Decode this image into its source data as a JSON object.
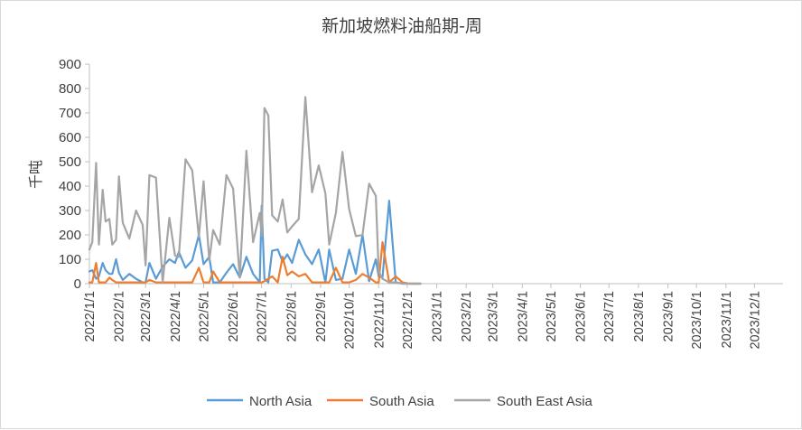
{
  "chart_data": {
    "type": "line",
    "title": "新加坡燃料油船期-周",
    "ylabel": "千吨",
    "xlabel": "",
    "ylim": [
      0,
      900
    ],
    "yticks": [
      0,
      100,
      200,
      300,
      400,
      500,
      600,
      700,
      800,
      900
    ],
    "x_ticks": [
      "2022/1/1",
      "2022/2/1",
      "2022/3/1",
      "2022/4/1",
      "2022/5/1",
      "2022/6/1",
      "2022/7/1",
      "2022/8/1",
      "2022/9/1",
      "2022/10/1",
      "2022/11/1",
      "2022/12/1",
      "2023/1/1",
      "2023/2/1",
      "2023/3/1",
      "2023/4/1",
      "2023/5/1",
      "2023/6/1",
      "2023/7/1",
      "2023/8/1",
      "2023/9/1",
      "2023/10/1",
      "2023/11/1",
      "2023/12/1"
    ],
    "x_start": "2022-01-01",
    "x_end": "2023-12-31",
    "grid": false,
    "legend_position": "bottom",
    "series": [
      {
        "name": "North Asia",
        "color": "#5b9bd5",
        "points": [
          [
            "2022-01-01",
            50
          ],
          [
            "2022-01-04",
            55
          ],
          [
            "2022-01-08",
            20
          ],
          [
            "2022-01-11",
            30
          ],
          [
            "2022-01-15",
            85
          ],
          [
            "2022-01-18",
            55
          ],
          [
            "2022-01-22",
            40
          ],
          [
            "2022-01-25",
            40
          ],
          [
            "2022-01-29",
            100
          ],
          [
            "2022-02-01",
            45
          ],
          [
            "2022-02-05",
            15
          ],
          [
            "2022-02-12",
            40
          ],
          [
            "2022-02-19",
            20
          ],
          [
            "2022-02-26",
            5
          ],
          [
            "2022-03-01",
            5
          ],
          [
            "2022-03-05",
            85
          ],
          [
            "2022-03-12",
            20
          ],
          [
            "2022-03-19",
            70
          ],
          [
            "2022-03-26",
            100
          ],
          [
            "2022-04-01",
            85
          ],
          [
            "2022-04-05",
            130
          ],
          [
            "2022-04-12",
            65
          ],
          [
            "2022-04-19",
            95
          ],
          [
            "2022-04-26",
            200
          ],
          [
            "2022-05-01",
            80
          ],
          [
            "2022-05-07",
            110
          ],
          [
            "2022-05-11",
            5
          ],
          [
            "2022-05-18",
            5
          ],
          [
            "2022-05-25",
            45
          ],
          [
            "2022-06-01",
            80
          ],
          [
            "2022-06-08",
            25
          ],
          [
            "2022-06-15",
            110
          ],
          [
            "2022-06-22",
            40
          ],
          [
            "2022-06-29",
            5
          ],
          [
            "2022-07-01",
            320
          ],
          [
            "2022-07-04",
            20
          ],
          [
            "2022-07-08",
            5
          ],
          [
            "2022-07-12",
            135
          ],
          [
            "2022-07-18",
            140
          ],
          [
            "2022-07-23",
            90
          ],
          [
            "2022-07-28",
            120
          ],
          [
            "2022-08-02",
            85
          ],
          [
            "2022-08-09",
            180
          ],
          [
            "2022-08-16",
            120
          ],
          [
            "2022-08-23",
            80
          ],
          [
            "2022-08-30",
            140
          ],
          [
            "2022-09-06",
            5
          ],
          [
            "2022-09-10",
            140
          ],
          [
            "2022-09-17",
            15
          ],
          [
            "2022-09-24",
            20
          ],
          [
            "2022-10-01",
            140
          ],
          [
            "2022-10-08",
            40
          ],
          [
            "2022-10-15",
            200
          ],
          [
            "2022-10-22",
            10
          ],
          [
            "2022-10-29",
            100
          ],
          [
            "2022-11-01",
            30
          ],
          [
            "2022-11-05",
            25
          ],
          [
            "2022-11-12",
            340
          ],
          [
            "2022-11-19",
            5
          ],
          [
            "2022-11-26",
            0
          ],
          [
            "2022-12-03",
            0
          ],
          [
            "2022-12-10",
            0
          ],
          [
            "2022-12-15",
            0
          ]
        ]
      },
      {
        "name": "South Asia",
        "color": "#ed7d31",
        "points": [
          [
            "2022-01-01",
            5
          ],
          [
            "2022-01-04",
            5
          ],
          [
            "2022-01-08",
            85
          ],
          [
            "2022-01-11",
            5
          ],
          [
            "2022-01-15",
            5
          ],
          [
            "2022-01-18",
            5
          ],
          [
            "2022-01-22",
            25
          ],
          [
            "2022-01-25",
            15
          ],
          [
            "2022-01-29",
            5
          ],
          [
            "2022-02-01",
            5
          ],
          [
            "2022-02-05",
            5
          ],
          [
            "2022-02-12",
            5
          ],
          [
            "2022-02-19",
            5
          ],
          [
            "2022-02-26",
            5
          ],
          [
            "2022-03-01",
            5
          ],
          [
            "2022-03-05",
            15
          ],
          [
            "2022-03-12",
            5
          ],
          [
            "2022-03-19",
            5
          ],
          [
            "2022-03-26",
            5
          ],
          [
            "2022-04-01",
            5
          ],
          [
            "2022-04-05",
            5
          ],
          [
            "2022-04-12",
            5
          ],
          [
            "2022-04-19",
            5
          ],
          [
            "2022-04-26",
            65
          ],
          [
            "2022-05-01",
            5
          ],
          [
            "2022-05-07",
            5
          ],
          [
            "2022-05-11",
            50
          ],
          [
            "2022-05-18",
            5
          ],
          [
            "2022-05-25",
            5
          ],
          [
            "2022-06-01",
            5
          ],
          [
            "2022-06-08",
            5
          ],
          [
            "2022-06-15",
            5
          ],
          [
            "2022-06-22",
            5
          ],
          [
            "2022-06-29",
            5
          ],
          [
            "2022-07-01",
            5
          ],
          [
            "2022-07-04",
            10
          ],
          [
            "2022-07-08",
            20
          ],
          [
            "2022-07-12",
            30
          ],
          [
            "2022-07-18",
            5
          ],
          [
            "2022-07-23",
            110
          ],
          [
            "2022-07-28",
            35
          ],
          [
            "2022-08-02",
            50
          ],
          [
            "2022-08-09",
            30
          ],
          [
            "2022-08-16",
            40
          ],
          [
            "2022-08-23",
            5
          ],
          [
            "2022-08-30",
            5
          ],
          [
            "2022-09-06",
            5
          ],
          [
            "2022-09-10",
            5
          ],
          [
            "2022-09-17",
            65
          ],
          [
            "2022-09-24",
            5
          ],
          [
            "2022-10-01",
            5
          ],
          [
            "2022-10-08",
            15
          ],
          [
            "2022-10-15",
            40
          ],
          [
            "2022-10-22",
            25
          ],
          [
            "2022-10-29",
            5
          ],
          [
            "2022-11-01",
            5
          ],
          [
            "2022-11-05",
            170
          ],
          [
            "2022-11-12",
            5
          ],
          [
            "2022-11-19",
            30
          ],
          [
            "2022-11-26",
            5
          ],
          [
            "2022-12-03",
            0
          ],
          [
            "2022-12-10",
            0
          ],
          [
            "2022-12-15",
            0
          ]
        ]
      },
      {
        "name": "South East Asia",
        "color": "#a5a5a5",
        "points": [
          [
            "2022-01-01",
            140
          ],
          [
            "2022-01-04",
            170
          ],
          [
            "2022-01-08",
            495
          ],
          [
            "2022-01-11",
            160
          ],
          [
            "2022-01-15",
            385
          ],
          [
            "2022-01-18",
            255
          ],
          [
            "2022-01-22",
            265
          ],
          [
            "2022-01-25",
            160
          ],
          [
            "2022-01-29",
            180
          ],
          [
            "2022-02-01",
            440
          ],
          [
            "2022-02-05",
            250
          ],
          [
            "2022-02-12",
            185
          ],
          [
            "2022-02-19",
            300
          ],
          [
            "2022-02-26",
            240
          ],
          [
            "2022-03-01",
            75
          ],
          [
            "2022-03-05",
            445
          ],
          [
            "2022-03-12",
            435
          ],
          [
            "2022-03-19",
            5
          ],
          [
            "2022-03-26",
            270
          ],
          [
            "2022-04-01",
            115
          ],
          [
            "2022-04-05",
            110
          ],
          [
            "2022-04-12",
            510
          ],
          [
            "2022-04-19",
            465
          ],
          [
            "2022-04-26",
            190
          ],
          [
            "2022-05-01",
            420
          ],
          [
            "2022-05-07",
            95
          ],
          [
            "2022-05-11",
            220
          ],
          [
            "2022-05-18",
            160
          ],
          [
            "2022-05-25",
            445
          ],
          [
            "2022-06-01",
            390
          ],
          [
            "2022-06-08",
            25
          ],
          [
            "2022-06-15",
            545
          ],
          [
            "2022-06-22",
            170
          ],
          [
            "2022-06-29",
            290
          ],
          [
            "2022-07-01",
            195
          ],
          [
            "2022-07-04",
            720
          ],
          [
            "2022-07-08",
            690
          ],
          [
            "2022-07-12",
            280
          ],
          [
            "2022-07-18",
            255
          ],
          [
            "2022-07-23",
            345
          ],
          [
            "2022-07-28",
            210
          ],
          [
            "2022-08-02",
            235
          ],
          [
            "2022-08-09",
            265
          ],
          [
            "2022-08-16",
            765
          ],
          [
            "2022-08-23",
            375
          ],
          [
            "2022-08-30",
            485
          ],
          [
            "2022-09-06",
            370
          ],
          [
            "2022-09-10",
            160
          ],
          [
            "2022-09-17",
            290
          ],
          [
            "2022-09-24",
            540
          ],
          [
            "2022-10-01",
            305
          ],
          [
            "2022-10-08",
            195
          ],
          [
            "2022-10-15",
            200
          ],
          [
            "2022-10-22",
            410
          ],
          [
            "2022-10-29",
            360
          ],
          [
            "2022-11-01",
            50
          ],
          [
            "2022-11-05",
            20
          ],
          [
            "2022-11-12",
            5
          ],
          [
            "2022-11-19",
            5
          ],
          [
            "2022-11-26",
            0
          ],
          [
            "2022-12-03",
            0
          ],
          [
            "2022-12-10",
            0
          ],
          [
            "2022-12-15",
            0
          ]
        ]
      }
    ]
  }
}
